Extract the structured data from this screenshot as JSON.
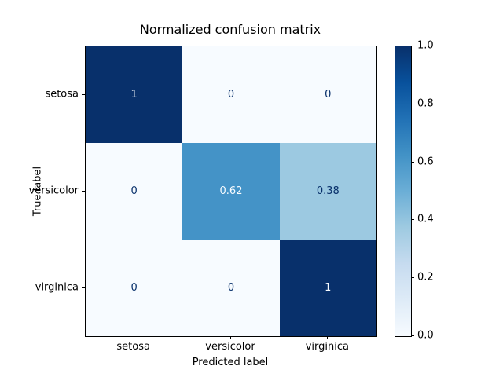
{
  "figure": {
    "background": "#ffffff"
  },
  "chart_data": {
    "type": "heatmap",
    "title": "Normalized confusion matrix",
    "xlabel": "Predicted label",
    "ylabel": "True label",
    "x_categories": [
      "setosa",
      "versicolor",
      "virginica"
    ],
    "y_categories": [
      "setosa",
      "versicolor",
      "virginica"
    ],
    "matrix": [
      [
        1,
        0,
        0
      ],
      [
        0,
        0.62,
        0.38
      ],
      [
        0,
        0,
        1
      ]
    ],
    "cell_labels": [
      [
        "1",
        "0",
        "0"
      ],
      [
        "0",
        "0.62",
        "0.38"
      ],
      [
        "0",
        "0",
        "1"
      ]
    ],
    "colormap": "Blues",
    "vmin": 0,
    "vmax": 1,
    "colorbar_ticks": [
      "0.0",
      "0.2",
      "0.4",
      "0.6",
      "0.8",
      "1.0"
    ],
    "legend_position": "colorbar-right",
    "grid": false,
    "colors": {
      "cmap_min": "#f7fbff",
      "cmap_max": "#08306b",
      "cmap_stops": [
        "#f7fbff",
        "#deebf7",
        "#c6dbef",
        "#9ecae1",
        "#6baed6",
        "#4292c6",
        "#2171b5",
        "#08519c",
        "#08306b"
      ],
      "spine": "#000000",
      "text": "#000000"
    }
  }
}
